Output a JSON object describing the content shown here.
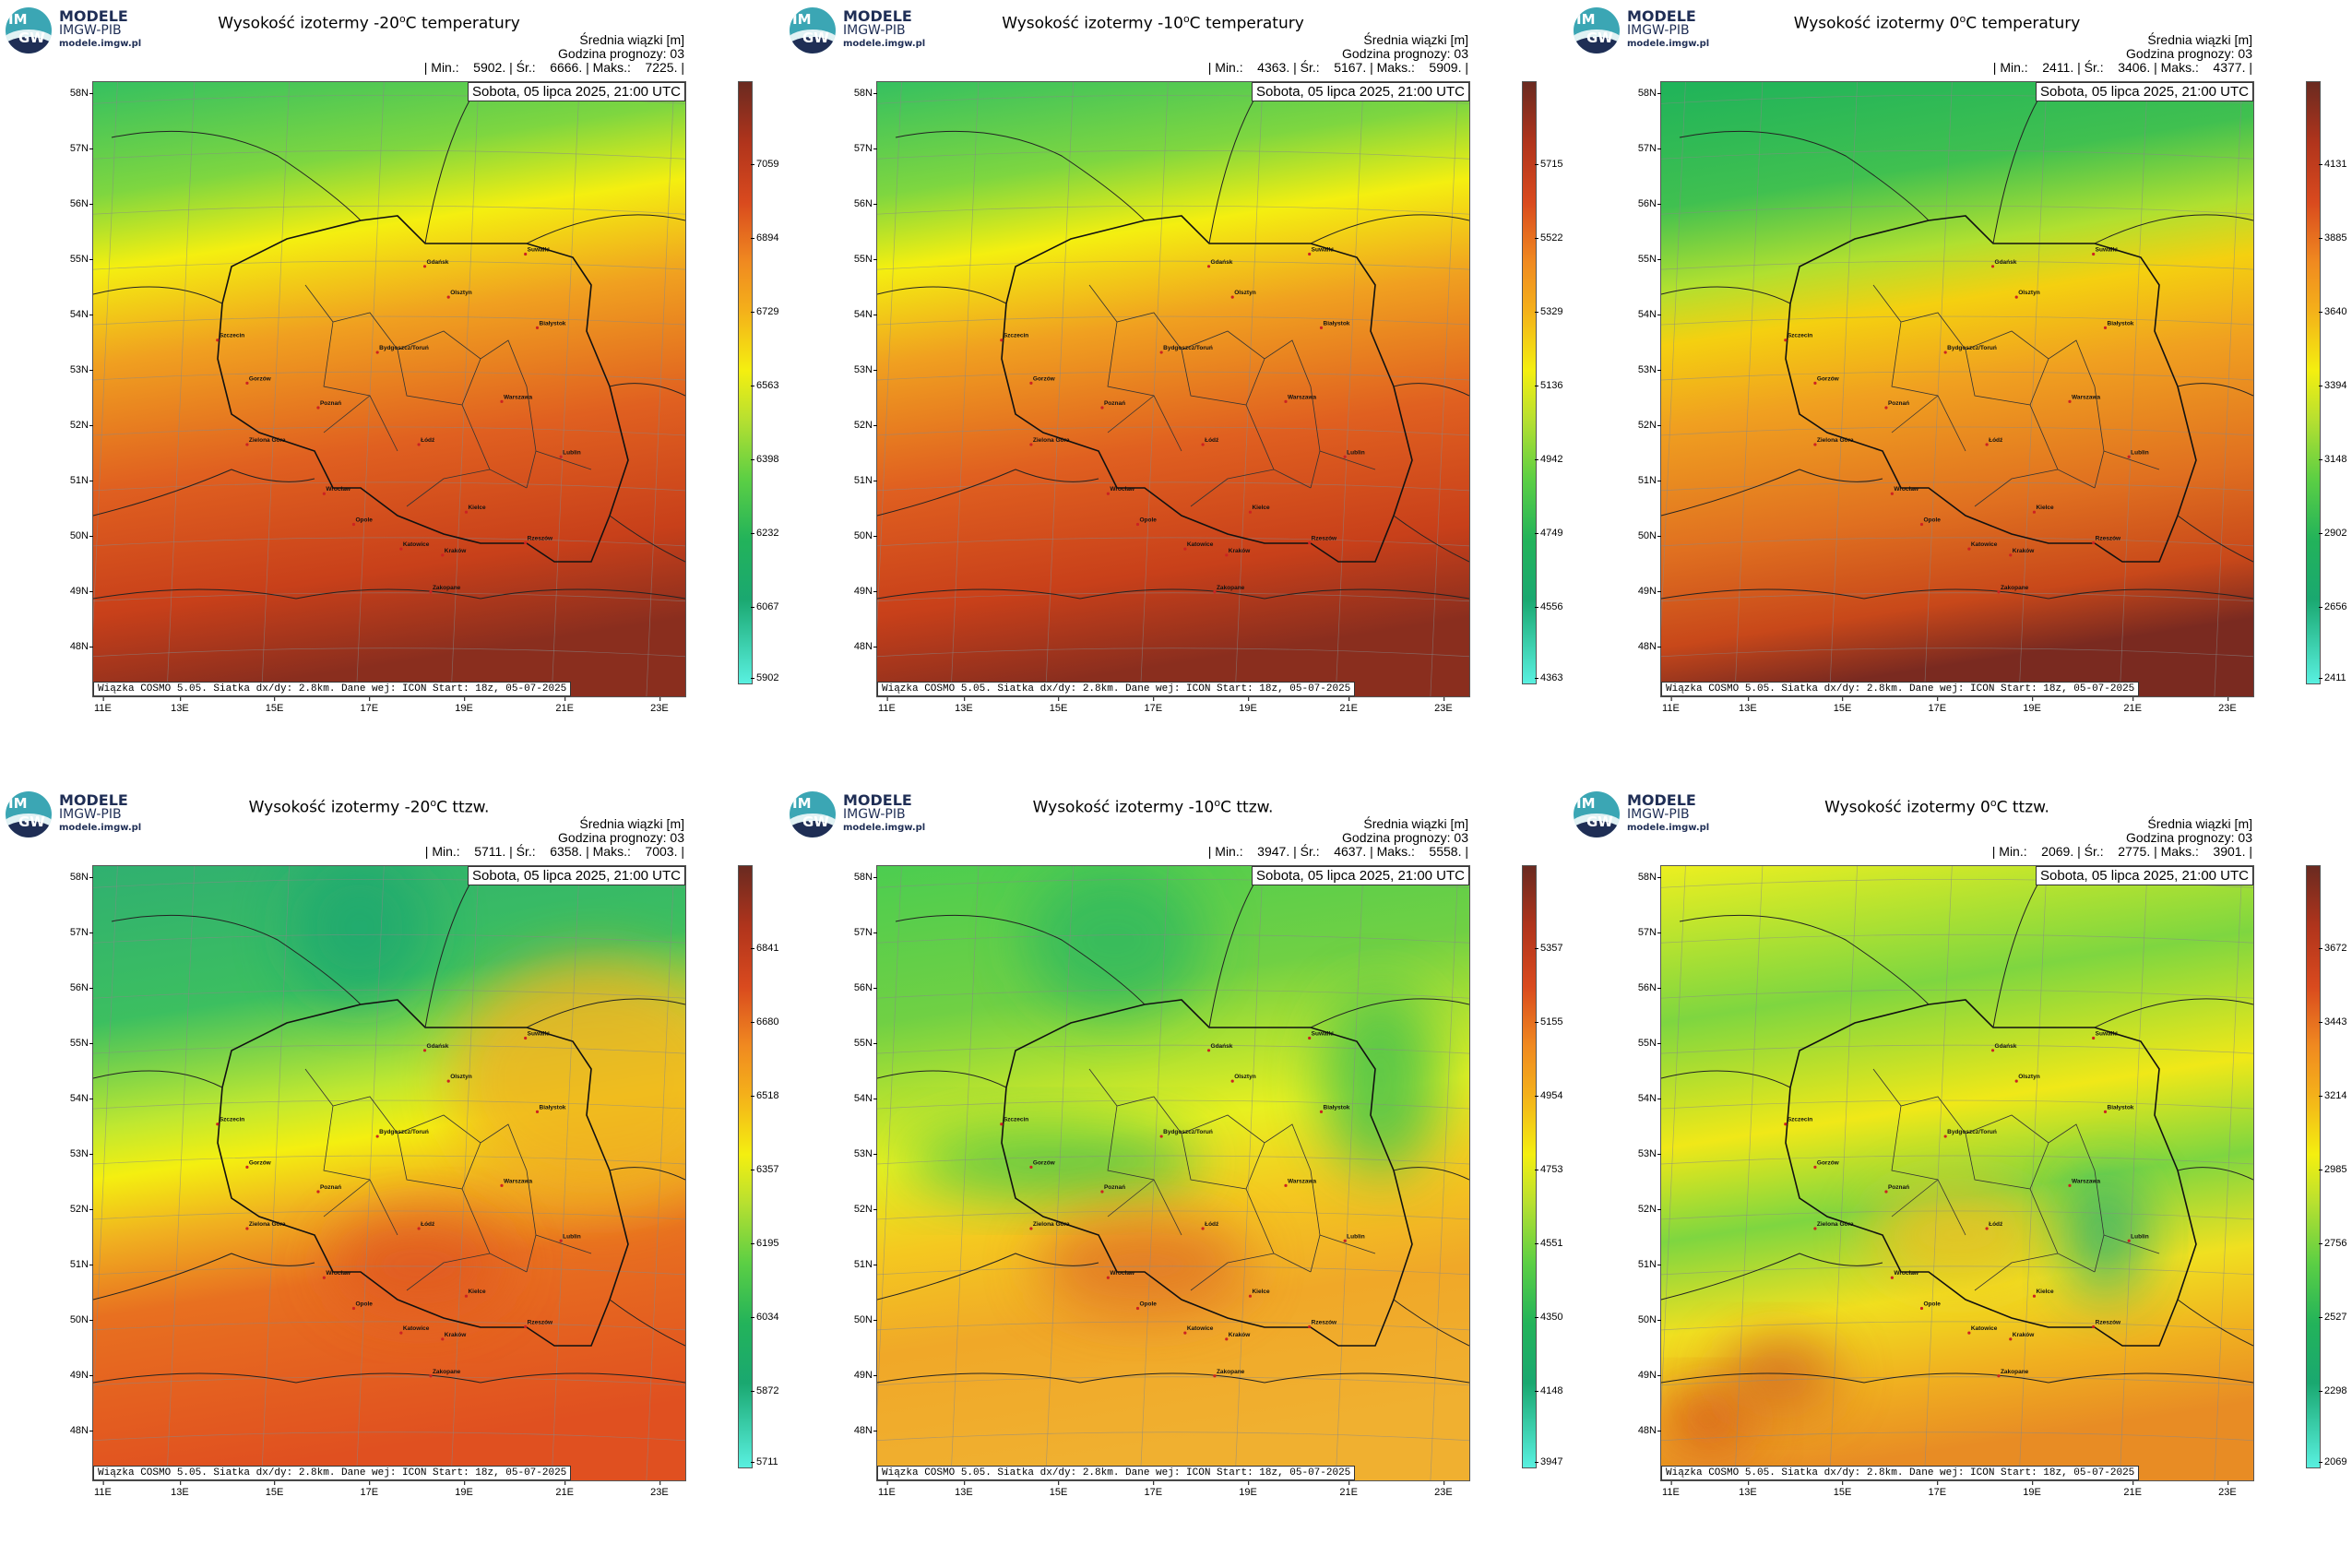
{
  "logo": {
    "title": "MODELE",
    "subtitle": "IMGW-PIB",
    "url": "modele.imgw.pl",
    "mark_top": "IM",
    "mark_bottom": "GW"
  },
  "common": {
    "units_label": "Średnia wiązki [m]",
    "forecast_hour": "Godzina prognozy: 03",
    "date": "Sobota, 05 lipca 2025, 21:00 UTC",
    "footer": "Wiązka COSMO 5.05. Siatka dx/dy: 2.8km. Dane wej: ICON Start: 18z, 05-07-2025",
    "lat_labels": [
      "58N",
      "57N",
      "56N",
      "55N",
      "54N",
      "53N",
      "52N",
      "51N",
      "50N",
      "49N",
      "48N"
    ],
    "lon_labels": [
      "11E",
      "13E",
      "15E",
      "17E",
      "19E",
      "21E",
      "23E"
    ],
    "cities": [
      "Gdańsk",
      "Suwałki",
      "Olsztyn",
      "Białystok",
      "Szczecin",
      "Bydgoszcz/Toruń",
      "Gorzów",
      "Poznań",
      "Warszawa",
      "Zielona Góra",
      "Łódź",
      "Lublin",
      "Wrocław",
      "Opole",
      "Kielce",
      "Katowice",
      "Kraków",
      "Rzeszów",
      "Zakopane"
    ],
    "colors": {
      "cyan": "#59f0e0",
      "green": "#1fb35a",
      "lightgreen": "#7ed640",
      "yellow": "#f4ef10",
      "orange": "#f0a020",
      "red": "#d94a1e",
      "darkred": "#7a2a20"
    }
  },
  "panels": [
    {
      "title_pre": "Wysokość izotermy -20",
      "title_post": "C temperatury",
      "stats": "| Min.:    5902. | Śr.:    6666. | Maks.:    7225. |",
      "colorbar": [
        "7059",
        "6894",
        "6729",
        "6563",
        "6398",
        "6232",
        "6067",
        "5902"
      ],
      "scheme": "warm"
    },
    {
      "title_pre": "Wysokość izotermy -10",
      "title_post": "C temperatury",
      "stats": "| Min.:    4363. | Śr.:    5167. | Maks.:    5909. |",
      "colorbar": [
        "5715",
        "5522",
        "5329",
        "5136",
        "4942",
        "4749",
        "4556",
        "4363"
      ],
      "scheme": "warm"
    },
    {
      "title_pre": "Wysokość izotermy 0",
      "title_post": "C temperatury",
      "stats": "| Min.:    2411. | Śr.:    3406. | Maks.:    4377. |",
      "colorbar": [
        "4131",
        "3885",
        "3640",
        "3394",
        "3148",
        "2902",
        "2656",
        "2411"
      ],
      "scheme": "mid"
    },
    {
      "title_pre": "Wysokość izotermy -20",
      "title_post": "C ttzw.",
      "stats": "| Min.:    5711. | Śr.:    6358. | Maks.:    7003. |",
      "colorbar": [
        "6841",
        "6680",
        "6518",
        "6357",
        "6195",
        "6034",
        "5872",
        "5711"
      ],
      "scheme": "tw20"
    },
    {
      "title_pre": "Wysokość izotermy -10",
      "title_post": "C ttzw.",
      "stats": "| Min.:    3947. | Śr.:    4637. | Maks.:    5558. |",
      "colorbar": [
        "5357",
        "5155",
        "4954",
        "4753",
        "4551",
        "4350",
        "4148",
        "3947"
      ],
      "scheme": "tw10"
    },
    {
      "title_pre": "Wysokość izotermy 0",
      "title_post": "C ttzw.",
      "stats": "| Min.:    2069. | Śr.:    2775. | Maks.:    3901. |",
      "colorbar": [
        "3672",
        "3443",
        "3214",
        "2985",
        "2756",
        "2527",
        "2298",
        "2069"
      ],
      "scheme": "tw0"
    }
  ]
}
